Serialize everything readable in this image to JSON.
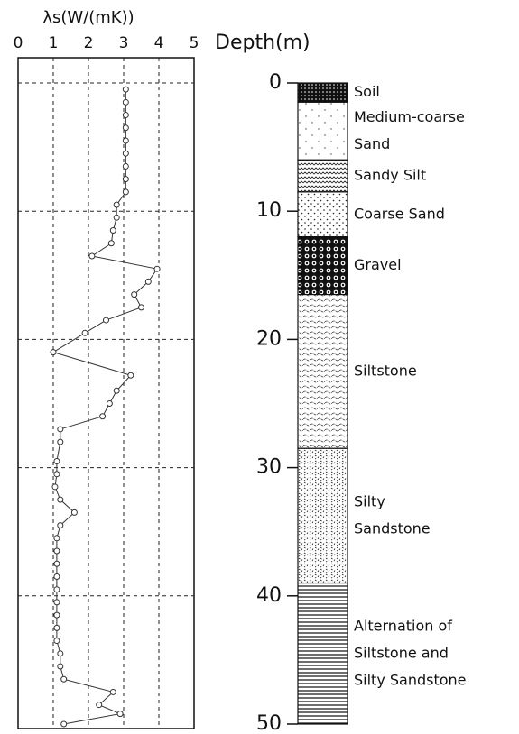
{
  "chart_data": {
    "type": "line",
    "title": "λs(W/(mK))",
    "y_label": "Depth(m)",
    "depth": [
      0.5,
      1.5,
      2.5,
      3.5,
      4.5,
      5.5,
      6.5,
      7.5,
      8.5,
      9.5,
      10.5,
      11.5,
      12.5,
      13.5,
      14.5,
      15.5,
      16.5,
      17.5,
      18.5,
      19.5,
      21,
      22.8,
      24,
      25,
      26,
      27,
      28,
      29.5,
      30.5,
      31.5,
      32.5,
      33.5,
      34.5,
      35.5,
      36.5,
      37.5,
      38.5,
      39.5,
      40.5,
      41.5,
      42.5,
      43.5,
      44.5,
      45.5,
      46.5,
      47.5,
      48.5,
      49.2,
      50
    ],
    "values": [
      3.06,
      3.06,
      3.06,
      3.06,
      3.06,
      3.06,
      3.06,
      3.06,
      3.06,
      2.8,
      2.8,
      2.7,
      2.65,
      2.1,
      3.95,
      3.7,
      3.3,
      3.5,
      2.5,
      1.9,
      1.0,
      3.2,
      2.8,
      2.6,
      2.4,
      1.2,
      1.2,
      1.1,
      1.1,
      1.05,
      1.2,
      1.6,
      1.2,
      1.1,
      1.1,
      1.1,
      1.1,
      1.1,
      1.1,
      1.1,
      1.1,
      1.1,
      1.2,
      1.2,
      1.3,
      2.7,
      2.3,
      2.9,
      1.3
    ],
    "color": "#333333",
    "xlim": [
      0,
      5
    ],
    "xticks": [
      0,
      1,
      2,
      3,
      4,
      5
    ],
    "ylim": [
      0,
      50
    ],
    "yticks": [
      0,
      10,
      20,
      30,
      40,
      50
    ],
    "grid": true,
    "layers": [
      {
        "name": [
          "Soil"
        ],
        "top": 0,
        "bottom": 1.5
      },
      {
        "name": [
          "Medium-coarse",
          "Sand"
        ],
        "top": 1.5,
        "bottom": 6
      },
      {
        "name": [
          "Sandy Silt"
        ],
        "top": 6,
        "bottom": 8.5
      },
      {
        "name": [
          "Coarse Sand"
        ],
        "top": 8.5,
        "bottom": 12
      },
      {
        "name": [
          "Gravel"
        ],
        "top": 12,
        "bottom": 16.5
      },
      {
        "name": [
          "Siltstone"
        ],
        "top": 16.5,
        "bottom": 28.5
      },
      {
        "name": [
          "Silty",
          "Sandstone"
        ],
        "top": 28.5,
        "bottom": 39
      },
      {
        "name": [
          "Alternation of",
          "Siltstone and",
          "Silty Sandstone"
        ],
        "top": 39,
        "bottom": 50
      }
    ]
  }
}
